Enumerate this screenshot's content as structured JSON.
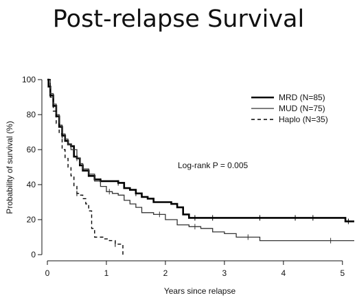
{
  "slide": {
    "title": "Post-relapse Survival"
  },
  "chart_data": {
    "type": "line",
    "xlabel": "Years since relapse",
    "ylabel": "Probability of survival (%)",
    "xlim": [
      0,
      5.2
    ],
    "ylim": [
      0,
      100
    ],
    "xticks": [
      0,
      1,
      2,
      3,
      4,
      5
    ],
    "yticks": [
      0,
      20,
      40,
      60,
      80,
      100
    ],
    "grid": false,
    "legend_position": "top-right",
    "annotation": "Log-rank P = 0.005",
    "series": [
      {
        "name": "MRD (N=85)",
        "style": "solid-thick",
        "color": "#000000",
        "points": [
          [
            0,
            100
          ],
          [
            0.02,
            96
          ],
          [
            0.05,
            91
          ],
          [
            0.1,
            85
          ],
          [
            0.15,
            79
          ],
          [
            0.2,
            73
          ],
          [
            0.25,
            68
          ],
          [
            0.3,
            65
          ],
          [
            0.35,
            63
          ],
          [
            0.4,
            62
          ],
          [
            0.45,
            56
          ],
          [
            0.5,
            55
          ],
          [
            0.55,
            51
          ],
          [
            0.6,
            48
          ],
          [
            0.7,
            45
          ],
          [
            0.8,
            43
          ],
          [
            0.9,
            42
          ],
          [
            1.0,
            42
          ],
          [
            1.1,
            42
          ],
          [
            1.2,
            41
          ],
          [
            1.3,
            38
          ],
          [
            1.4,
            37
          ],
          [
            1.5,
            35
          ],
          [
            1.6,
            33
          ],
          [
            1.7,
            32
          ],
          [
            1.8,
            30
          ],
          [
            2.0,
            30
          ],
          [
            2.1,
            29
          ],
          [
            2.2,
            27
          ],
          [
            2.3,
            23
          ],
          [
            2.4,
            21
          ],
          [
            3.0,
            21
          ],
          [
            4.0,
            21
          ],
          [
            5.0,
            21
          ],
          [
            5.05,
            19
          ],
          [
            5.2,
            19
          ]
        ],
        "censor_x": [
          0.25,
          0.9,
          1.2,
          1.5,
          2.5,
          2.8,
          3.6,
          4.2,
          4.5,
          5.1
        ]
      },
      {
        "name": "MUD (N=75)",
        "style": "solid-thin",
        "color": "#333333",
        "points": [
          [
            0,
            100
          ],
          [
            0.05,
            92
          ],
          [
            0.1,
            86
          ],
          [
            0.15,
            80
          ],
          [
            0.2,
            74
          ],
          [
            0.25,
            69
          ],
          [
            0.3,
            66
          ],
          [
            0.35,
            63
          ],
          [
            0.4,
            60
          ],
          [
            0.5,
            55
          ],
          [
            0.55,
            52
          ],
          [
            0.6,
            49
          ],
          [
            0.7,
            46
          ],
          [
            0.8,
            42
          ],
          [
            0.9,
            39
          ],
          [
            1.0,
            36
          ],
          [
            1.1,
            35
          ],
          [
            1.2,
            34
          ],
          [
            1.3,
            31
          ],
          [
            1.4,
            29
          ],
          [
            1.5,
            27
          ],
          [
            1.6,
            24
          ],
          [
            1.8,
            23
          ],
          [
            2.0,
            20
          ],
          [
            2.2,
            17
          ],
          [
            2.4,
            16
          ],
          [
            2.6,
            15
          ],
          [
            2.8,
            13
          ],
          [
            3.0,
            12
          ],
          [
            3.2,
            10
          ],
          [
            3.6,
            8
          ],
          [
            4.0,
            8
          ],
          [
            5.2,
            8
          ]
        ],
        "censor_x": [
          0.5,
          1.05,
          1.9,
          2.5,
          3.4,
          4.8
        ]
      },
      {
        "name": "Haplo (N=35)",
        "style": "dashed",
        "color": "#000000",
        "points": [
          [
            0,
            100
          ],
          [
            0.05,
            90
          ],
          [
            0.1,
            82
          ],
          [
            0.15,
            75
          ],
          [
            0.2,
            69
          ],
          [
            0.25,
            60
          ],
          [
            0.3,
            55
          ],
          [
            0.35,
            50
          ],
          [
            0.4,
            45
          ],
          [
            0.45,
            39
          ],
          [
            0.5,
            35
          ],
          [
            0.55,
            34
          ],
          [
            0.6,
            32
          ],
          [
            0.65,
            29
          ],
          [
            0.7,
            25
          ],
          [
            0.75,
            15
          ],
          [
            0.8,
            10
          ],
          [
            0.95,
            9
          ],
          [
            1.05,
            8
          ],
          [
            1.15,
            6
          ],
          [
            1.28,
            6
          ],
          [
            1.28,
            0
          ]
        ],
        "censor_x": [
          0.5,
          1.15
        ]
      }
    ]
  }
}
